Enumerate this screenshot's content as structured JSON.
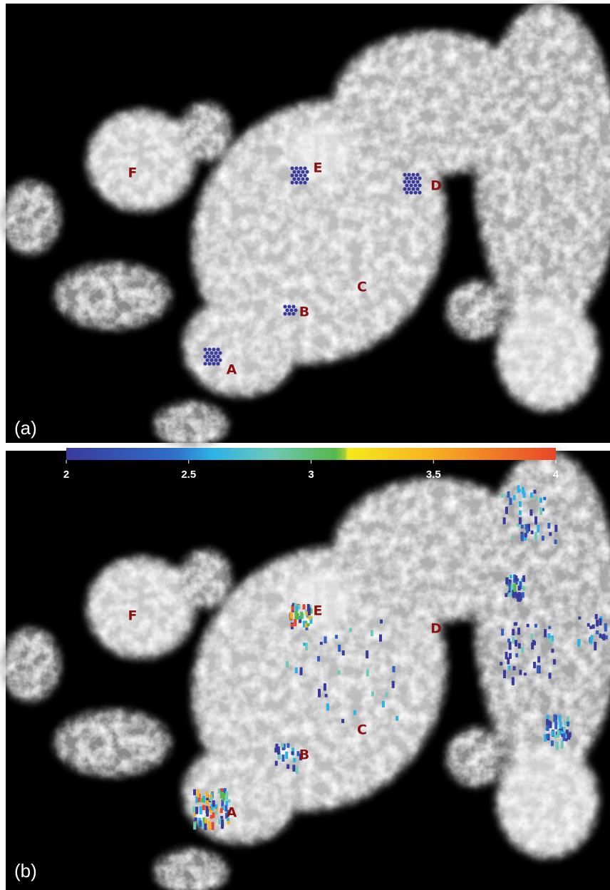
{
  "panels": [
    {
      "label": "(a)",
      "regions": [
        "F",
        "E",
        "D",
        "C",
        "B",
        "A"
      ]
    },
    {
      "label": "(b)",
      "regions": [
        "F",
        "E",
        "D",
        "C",
        "B",
        "A"
      ]
    }
  ],
  "colorbar": {
    "ticks": [
      2,
      2.5,
      3,
      3.5,
      4
    ]
  }
}
